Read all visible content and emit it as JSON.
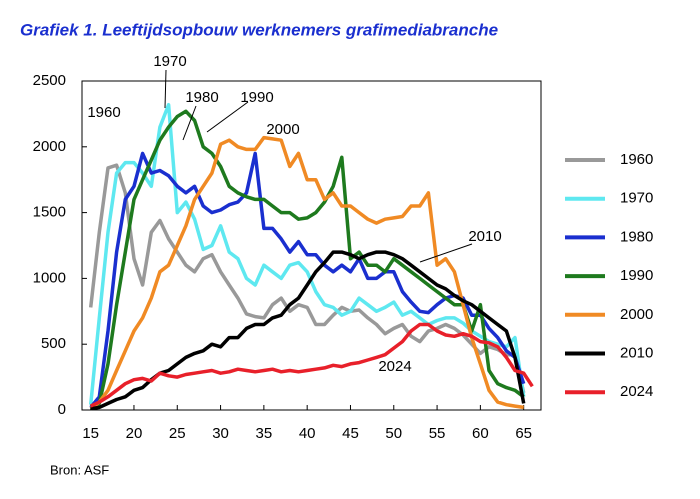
{
  "chart_data": {
    "type": "line",
    "title": "Grafiek 1. Leeftijdsopbouw werknemers grafimediabranche",
    "source": "Bron: ASF",
    "x": [
      15,
      16,
      17,
      18,
      19,
      20,
      21,
      22,
      23,
      24,
      25,
      26,
      27,
      28,
      29,
      30,
      31,
      32,
      33,
      34,
      35,
      36,
      37,
      38,
      39,
      40,
      41,
      42,
      43,
      44,
      45,
      46,
      47,
      48,
      49,
      50,
      51,
      52,
      53,
      54,
      55,
      56,
      57,
      58,
      59,
      60,
      61,
      62,
      63,
      64,
      65,
      66
    ],
    "xlim": [
      14,
      67
    ],
    "xticks": [
      15,
      20,
      25,
      30,
      35,
      40,
      45,
      50,
      55,
      60,
      65
    ],
    "ylim": [
      0,
      2500
    ],
    "yticks": [
      0,
      500,
      1000,
      1500,
      2000,
      2500
    ],
    "annotations": [
      "1960",
      "1970",
      "1980",
      "1990",
      "2000",
      "2010",
      "2024"
    ],
    "series": [
      {
        "name": "1960",
        "color": "#999999",
        "values": [
          780,
          1350,
          1840,
          1860,
          1650,
          1150,
          950,
          1350,
          1440,
          1300,
          1200,
          1100,
          1050,
          1150,
          1180,
          1050,
          950,
          850,
          730,
          710,
          700,
          800,
          850,
          750,
          800,
          780,
          650,
          650,
          720,
          780,
          750,
          760,
          700,
          650,
          580,
          620,
          650,
          560,
          520,
          600,
          620,
          650,
          620,
          570,
          500,
          430,
          480,
          460,
          420,
          420,
          130,
          null
        ]
      },
      {
        "name": "1970",
        "color": "#5ee8f0",
        "values": [
          40,
          700,
          1350,
          1800,
          1880,
          1880,
          1800,
          1700,
          2150,
          2320,
          1500,
          1580,
          1450,
          1220,
          1250,
          1400,
          1200,
          1150,
          1000,
          950,
          1100,
          1050,
          1000,
          1100,
          1120,
          1050,
          900,
          800,
          780,
          720,
          750,
          850,
          800,
          750,
          780,
          820,
          720,
          750,
          700,
          650,
          680,
          700,
          700,
          660,
          600,
          560,
          520,
          500,
          480,
          550,
          100,
          null
        ]
      },
      {
        "name": "1980",
        "color": "#1a2fcf",
        "values": [
          20,
          100,
          600,
          1200,
          1600,
          1700,
          1950,
          1800,
          1820,
          1780,
          1700,
          1650,
          1700,
          1550,
          1500,
          1520,
          1560,
          1580,
          1650,
          1950,
          1380,
          1380,
          1300,
          1200,
          1280,
          1180,
          1180,
          1100,
          1050,
          1100,
          1050,
          1150,
          1000,
          1000,
          1050,
          1050,
          900,
          820,
          750,
          740,
          800,
          850,
          870,
          850,
          720,
          720,
          620,
          550,
          450,
          400,
          200,
          null
        ]
      },
      {
        "name": "1990",
        "color": "#1e7a1e",
        "values": [
          10,
          50,
          350,
          800,
          1200,
          1600,
          1750,
          1900,
          2050,
          2150,
          2230,
          2270,
          2200,
          2000,
          1950,
          1850,
          1700,
          1650,
          1620,
          1600,
          1600,
          1550,
          1500,
          1500,
          1450,
          1460,
          1500,
          1580,
          1700,
          1920,
          1150,
          1200,
          1100,
          1100,
          1050,
          1150,
          1100,
          1050,
          1000,
          950,
          900,
          850,
          800,
          800,
          600,
          800,
          300,
          200,
          170,
          150,
          100,
          null
        ]
      },
      {
        "name": "2000",
        "color": "#f08a24",
        "values": [
          10,
          60,
          150,
          300,
          450,
          600,
          700,
          850,
          1050,
          1100,
          1250,
          1400,
          1600,
          1700,
          1800,
          2020,
          2050,
          2000,
          1980,
          1980,
          2070,
          2060,
          2050,
          1850,
          1950,
          1750,
          1750,
          1600,
          1650,
          1550,
          1550,
          1500,
          1450,
          1420,
          1450,
          1460,
          1470,
          1550,
          1550,
          1650,
          1100,
          1150,
          1050,
          800,
          550,
          350,
          150,
          60,
          40,
          30,
          20,
          null
        ]
      },
      {
        "name": "2010",
        "color": "#000000",
        "values": [
          10,
          20,
          50,
          80,
          100,
          150,
          170,
          230,
          280,
          300,
          350,
          400,
          430,
          450,
          500,
          480,
          550,
          550,
          620,
          650,
          650,
          700,
          720,
          800,
          850,
          950,
          1050,
          1120,
          1200,
          1200,
          1180,
          1150,
          1180,
          1200,
          1200,
          1180,
          1150,
          1100,
          1050,
          1000,
          950,
          920,
          870,
          830,
          800,
          750,
          700,
          650,
          600,
          400,
          50,
          null
        ]
      },
      {
        "name": "2024",
        "color": "#e8202a",
        "values": [
          30,
          60,
          100,
          150,
          200,
          230,
          240,
          220,
          280,
          260,
          250,
          270,
          280,
          290,
          300,
          280,
          290,
          310,
          300,
          290,
          300,
          310,
          290,
          300,
          290,
          300,
          310,
          320,
          340,
          330,
          350,
          360,
          380,
          400,
          420,
          470,
          520,
          600,
          650,
          650,
          600,
          570,
          560,
          580,
          560,
          520,
          510,
          480,
          400,
          300,
          280,
          180
        ]
      }
    ]
  }
}
